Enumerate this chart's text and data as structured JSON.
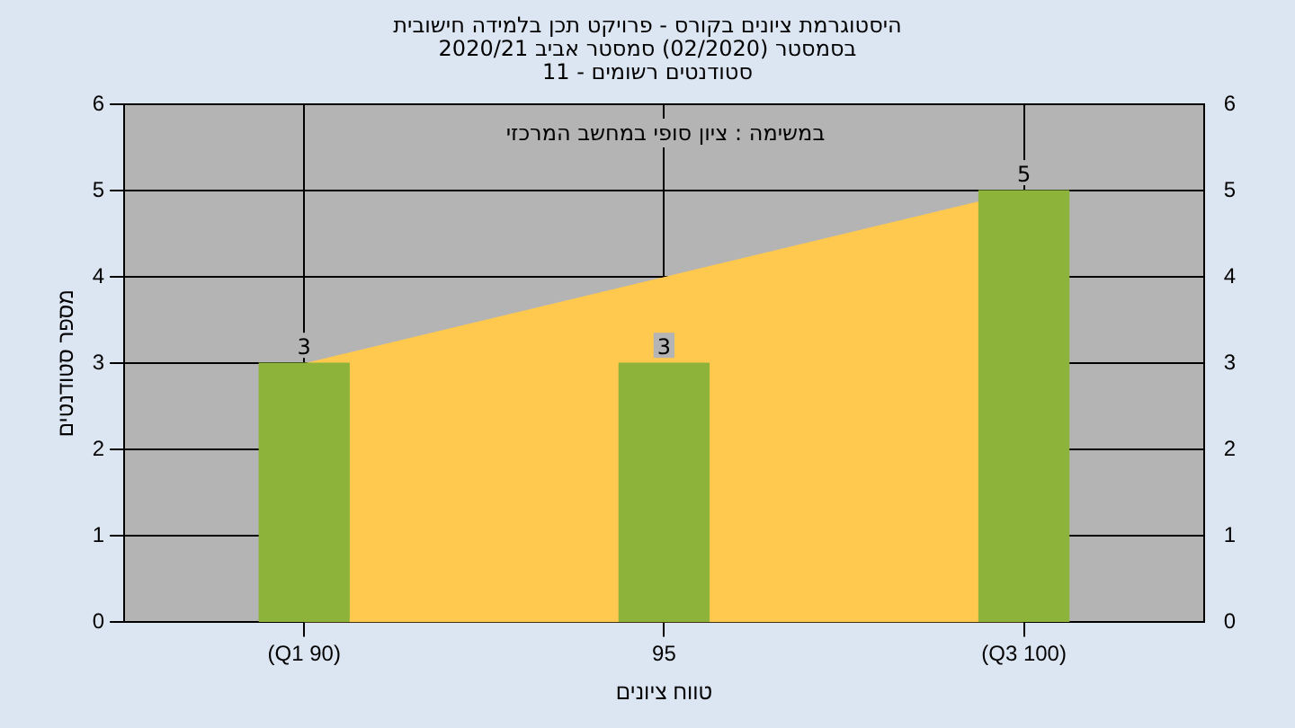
{
  "chart_data": {
    "type": "bar",
    "title": "היסטוגרמת ציונים בקורס - פרויקט תכן בלמידה חישובית\nבסמסטר (02/2020) סמסטר אביב 2020/21\nסטודנטים רשומים - 11",
    "annotations": [
      "במשימה : ציון סופי במחשב המרכזי"
    ],
    "xlabel": "טווח ציונים",
    "ylabel": "מספר סטודנטים",
    "categories": [
      "(Q1 90)",
      "95",
      "(Q3 100)"
    ],
    "series": [
      {
        "type": "area",
        "color": "#ffc94f",
        "values": [
          3,
          4,
          5
        ]
      },
      {
        "color": "#8db33a",
        "values": [
          3,
          3,
          5
        ],
        "value_labels": [
          "3",
          "3",
          "5"
        ]
      }
    ],
    "ylim": [
      0,
      6
    ],
    "yticks": [
      0,
      1,
      2,
      3,
      4,
      5,
      6
    ],
    "y2lim": [
      0,
      6
    ],
    "y2ticks": [
      0,
      1,
      2,
      3,
      4,
      5,
      6
    ],
    "grid": true,
    "legend": false
  }
}
